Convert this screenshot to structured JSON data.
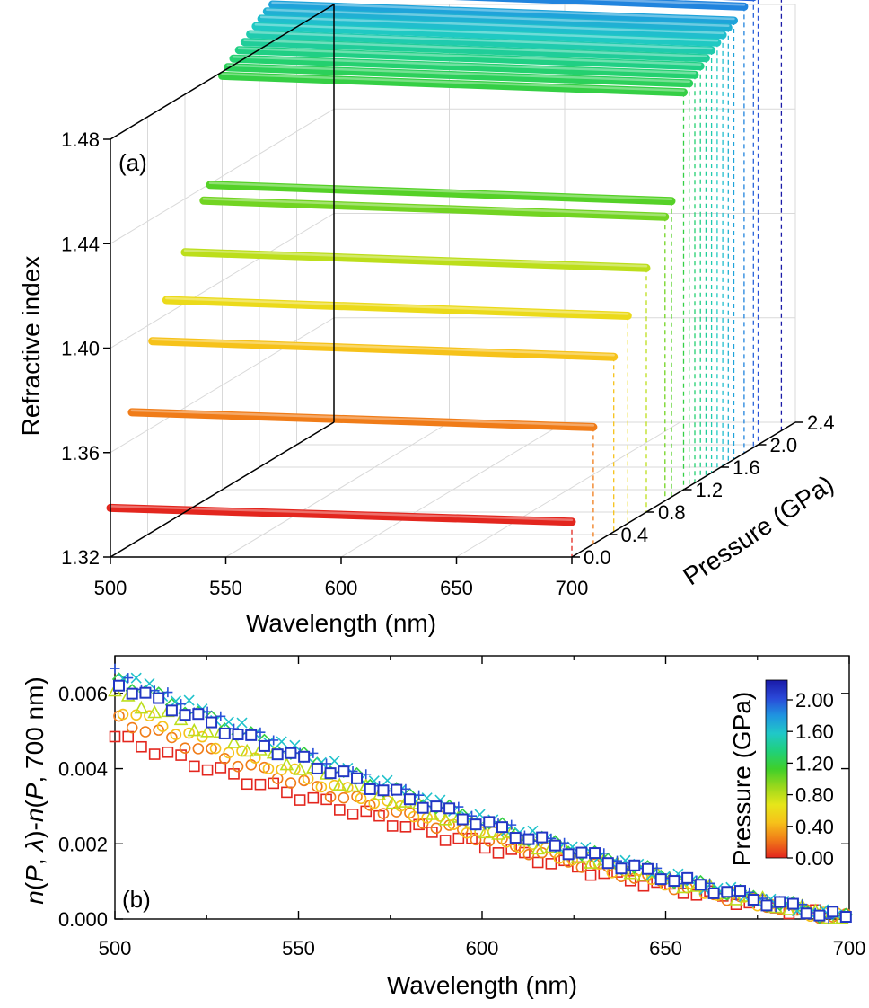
{
  "figure_title": "Refractive index vs wavelength and pressure",
  "colors": {
    "scale": [
      "#e3261e",
      "#f07a18",
      "#f6c21a",
      "#e6e61a",
      "#9ad81c",
      "#3fcf2a",
      "#20d07a",
      "#20c8c8",
      "#1f95e0",
      "#2a48d8",
      "#1a1aa8"
    ]
  },
  "chart_data": [
    {
      "panel": "(a)",
      "type": "line",
      "title": "",
      "xlabel": "Wavelength (nm)",
      "ylabel": "Refractive index",
      "zlabel": "Pressure (GPa)",
      "xlim": [
        500,
        700
      ],
      "ylim": [
        1.32,
        1.48
      ],
      "zlim": [
        0.0,
        2.4
      ],
      "x_ticks": [
        "500",
        "550",
        "600",
        "650",
        "700"
      ],
      "y_ticks": [
        "1.32",
        "1.36",
        "1.40",
        "1.44",
        "1.48"
      ],
      "z_ticks": [
        "0.0",
        "0.4",
        "0.8",
        "1.2",
        "1.6",
        "2.0",
        "2.4"
      ],
      "series": [
        {
          "name": "0.00 GPa",
          "pressure": 0.0,
          "n_start": 1.3388,
          "n_end": 1.3335
        },
        {
          "name": "0.23 GPa",
          "pressure": 0.23,
          "n_start": 1.3705,
          "n_end": 1.3648
        },
        {
          "name": "0.45 GPa",
          "pressure": 0.45,
          "n_start": 1.393,
          "n_end": 1.387
        },
        {
          "name": "0.60 GPa",
          "pressure": 0.6,
          "n_start": 1.4055,
          "n_end": 1.3995
        },
        {
          "name": "0.80 GPa",
          "pressure": 0.8,
          "n_start": 1.4195,
          "n_end": 1.4135
        },
        {
          "name": "1.00 GPa",
          "pressure": 1.0,
          "n_start": 1.435,
          "n_end": 1.4288
        },
        {
          "name": "1.07 GPa",
          "pressure": 1.07,
          "n_start": 1.4395,
          "n_end": 1.4333
        },
        {
          "name": "1.20 GPa",
          "pressure": 1.2,
          "n_start": 1.4785,
          "n_end": 1.4722
        },
        {
          "name": "1.26 GPa",
          "pressure": 1.26,
          "n_start": 1.4805,
          "n_end": 1.4743
        },
        {
          "name": "1.32 GPa",
          "pressure": 1.32,
          "n_start": 1.4825,
          "n_end": 1.4763
        },
        {
          "name": "1.38 GPa",
          "pressure": 1.38,
          "n_start": 1.4845,
          "n_end": 1.4783
        },
        {
          "name": "1.44 GPa",
          "pressure": 1.44,
          "n_start": 1.4863,
          "n_end": 1.4801
        },
        {
          "name": "1.50 GPa",
          "pressure": 1.5,
          "n_start": 1.488,
          "n_end": 1.4818
        },
        {
          "name": "1.56 GPa",
          "pressure": 1.56,
          "n_start": 1.4897,
          "n_end": 1.4835
        },
        {
          "name": "1.62 GPa",
          "pressure": 1.62,
          "n_start": 1.4913,
          "n_end": 1.4851
        },
        {
          "name": "1.68 GPa",
          "pressure": 1.68,
          "n_start": 1.4928,
          "n_end": 1.4866
        },
        {
          "name": "1.74 GPa",
          "pressure": 1.74,
          "n_start": 1.4942,
          "n_end": 1.488
        },
        {
          "name": "1.85 GPa",
          "pressure": 1.85,
          "n_start": 1.4975,
          "n_end": 1.491
        },
        {
          "name": "1.95 GPa",
          "pressure": 1.95,
          "n_start": 1.499,
          "n_end": 1.4925
        },
        {
          "name": "2.00 GPa",
          "pressure": 2.0,
          "n_start": 1.5,
          "n_end": 1.4935
        },
        {
          "name": "2.25 GPa",
          "pressure": 2.25,
          "n_start": 1.502,
          "n_end": 1.495
        }
      ]
    },
    {
      "panel": "(b)",
      "type": "scatter",
      "title": "",
      "xlabel": "Wavelength (nm)",
      "ylabel_parts": [
        "n",
        "(",
        "P",
        ", ",
        "λ",
        ")-",
        "n",
        "(",
        "P",
        ", 700 nm)"
      ],
      "xlim": [
        500,
        700
      ],
      "ylim": [
        0.0,
        0.007
      ],
      "x_ticks": [
        "500",
        "550",
        "600",
        "650",
        "700"
      ],
      "y_ticks": [
        "0.000",
        "0.002",
        "0.004",
        "0.006"
      ],
      "colorbar": {
        "label": "Pressure (GPa)",
        "range": [
          0.0,
          2.25
        ],
        "ticks": [
          "0.00",
          "0.40",
          "0.80",
          "1.20",
          "1.60",
          "2.00"
        ]
      },
      "x_start": 500,
      "x_step": 3.6,
      "series": [
        {
          "name": "0.00 GPa",
          "pressure": 0.0,
          "marker": "square",
          "amplitude": 0.00485
        },
        {
          "name": "0.23 GPa",
          "pressure": 0.23,
          "marker": "circle",
          "amplitude": 0.00535
        },
        {
          "name": "0.45 GPa",
          "pressure": 0.45,
          "marker": "circle",
          "amplitude": 0.00565
        },
        {
          "name": "0.80 GPa",
          "pressure": 0.8,
          "marker": "triangle",
          "amplitude": 0.006
        },
        {
          "name": "1.20 GPa",
          "pressure": 1.2,
          "marker": "diamond",
          "amplitude": 0.0064
        },
        {
          "name": "1.60 GPa",
          "pressure": 1.6,
          "marker": "cross",
          "amplitude": 0.0066
        },
        {
          "name": "2.00 GPa",
          "pressure": 2.0,
          "marker": "plus",
          "amplitude": 0.00655
        },
        {
          "name": "2.25 GPa",
          "pressure": 2.25,
          "marker": "square-filled",
          "amplitude": 0.0063
        }
      ]
    }
  ]
}
